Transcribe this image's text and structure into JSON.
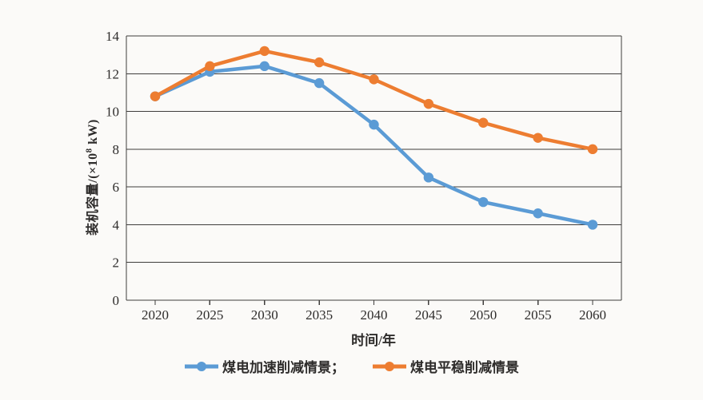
{
  "chart_data": {
    "type": "line",
    "title": "",
    "xlabel": "时间/年",
    "ylabel": "装机容量/(×10⁸ kW)",
    "ylabel_parts": {
      "prefix": "装机容量/(×10",
      "sup": "8",
      "suffix": " kW)"
    },
    "x": [
      2020,
      2025,
      2030,
      2035,
      2040,
      2045,
      2050,
      2055,
      2060
    ],
    "series": [
      {
        "name": "煤电加速削减情景",
        "color": "#5b9bd5",
        "values": [
          10.8,
          12.1,
          12.4,
          11.5,
          9.3,
          6.5,
          5.2,
          4.6,
          4.0
        ]
      },
      {
        "name": "煤电平稳削减情景",
        "color": "#ed7d31",
        "values": [
          10.8,
          12.4,
          13.2,
          12.6,
          11.7,
          10.4,
          9.4,
          8.6,
          8.0
        ]
      }
    ],
    "legend_labels": [
      "煤电加速削减情景；",
      "煤电平稳削减情景"
    ],
    "legend_position": "bottom",
    "ylim": [
      0,
      14
    ],
    "yticks": [
      0,
      2,
      4,
      6,
      8,
      10,
      12,
      14
    ],
    "grid": true,
    "axis_color": "#3f3d3c",
    "text_color": "#2e2c2b"
  }
}
